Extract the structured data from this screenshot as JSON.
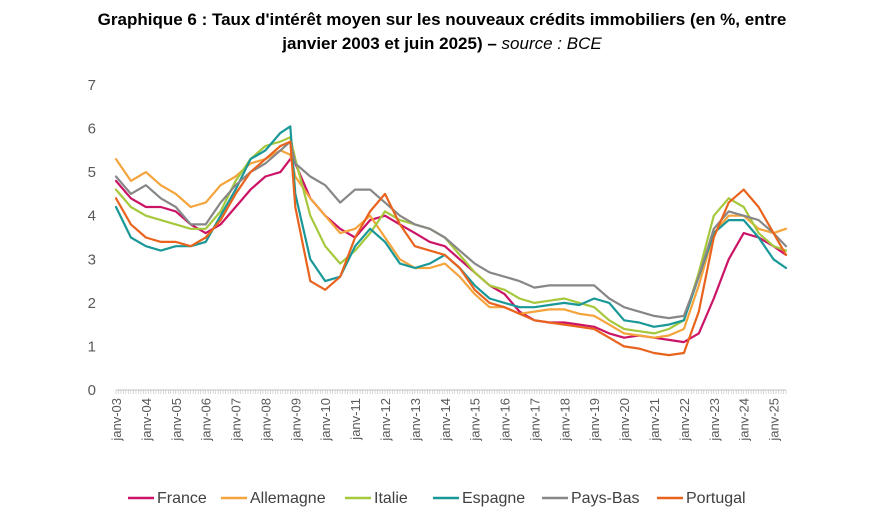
{
  "title": {
    "line1": "Graphique 6 : Taux d'intérêt moyen sur les nouveaux crédits immobiliers (en %, entre",
    "line2_main": "janvier 2003 et juin 2025) – ",
    "line2_source": "source : BCE"
  },
  "chart_data": {
    "type": "line",
    "title": "Graphique 6 : Taux d'intérêt moyen sur les nouveaux crédits immobiliers (en %, entre janvier 2003 et juin 2025) – source : BCE",
    "xlabel": "",
    "ylabel": "",
    "x_range": [
      "2003-01",
      "2025-06"
    ],
    "ylim": [
      0,
      7
    ],
    "y_ticks": [
      "0",
      "1",
      "2",
      "3",
      "4",
      "5",
      "6",
      "7"
    ],
    "x_ticks": [
      "janv-03",
      "janv-04",
      "janv-05",
      "janv-06",
      "janv-07",
      "janv-08",
      "janv-09",
      "janv-10",
      "janv-11",
      "janv-12",
      "janv-13",
      "janv-14",
      "janv-15",
      "janv-16",
      "janv-17",
      "janv-18",
      "janv-19",
      "janv-20",
      "janv-21",
      "janv-22",
      "janv-23",
      "janv-24",
      "janv-25"
    ],
    "grid": false,
    "legend_position": "bottom",
    "series": [
      {
        "name": "France",
        "color": "#cc1466",
        "x": [
          "2003-01",
          "2003-07",
          "2004-01",
          "2004-07",
          "2005-01",
          "2005-07",
          "2006-01",
          "2006-07",
          "2007-01",
          "2007-07",
          "2008-01",
          "2008-07",
          "2008-11",
          "2009-01",
          "2009-07",
          "2010-01",
          "2010-07",
          "2011-01",
          "2011-07",
          "2012-01",
          "2012-07",
          "2013-01",
          "2013-07",
          "2014-01",
          "2014-07",
          "2015-01",
          "2015-07",
          "2016-01",
          "2016-07",
          "2017-01",
          "2017-07",
          "2018-01",
          "2018-07",
          "2019-01",
          "2019-07",
          "2020-01",
          "2020-07",
          "2021-01",
          "2021-07",
          "2022-01",
          "2022-07",
          "2023-01",
          "2023-07",
          "2024-01",
          "2024-07",
          "2025-01",
          "2025-06"
        ],
        "values": [
          4.8,
          4.4,
          4.2,
          4.2,
          4.1,
          3.8,
          3.6,
          3.8,
          4.2,
          4.6,
          4.9,
          5.0,
          5.3,
          5.2,
          4.4,
          4.0,
          3.7,
          3.5,
          3.9,
          4.0,
          3.8,
          3.6,
          3.4,
          3.3,
          3.0,
          2.7,
          2.4,
          2.2,
          1.8,
          1.6,
          1.55,
          1.55,
          1.5,
          1.45,
          1.3,
          1.2,
          1.25,
          1.2,
          1.15,
          1.1,
          1.3,
          2.1,
          3.0,
          3.6,
          3.5,
          3.3,
          3.1
        ]
      },
      {
        "name": "Allemagne",
        "color": "#f5a43c",
        "x": [
          "2003-01",
          "2003-07",
          "2004-01",
          "2004-07",
          "2005-01",
          "2005-07",
          "2006-01",
          "2006-07",
          "2007-01",
          "2007-07",
          "2008-01",
          "2008-07",
          "2008-11",
          "2009-01",
          "2009-07",
          "2010-01",
          "2010-07",
          "2011-01",
          "2011-07",
          "2012-01",
          "2012-07",
          "2013-01",
          "2013-07",
          "2014-01",
          "2014-07",
          "2015-01",
          "2015-07",
          "2016-01",
          "2016-07",
          "2017-01",
          "2017-07",
          "2018-01",
          "2018-07",
          "2019-01",
          "2019-07",
          "2020-01",
          "2020-07",
          "2021-01",
          "2021-07",
          "2022-01",
          "2022-07",
          "2023-01",
          "2023-07",
          "2024-01",
          "2024-07",
          "2025-01",
          "2025-06"
        ],
        "values": [
          5.3,
          4.8,
          5.0,
          4.7,
          4.5,
          4.2,
          4.3,
          4.7,
          4.9,
          5.2,
          5.3,
          5.5,
          5.4,
          4.9,
          4.4,
          4.0,
          3.6,
          3.7,
          4.0,
          3.5,
          3.0,
          2.8,
          2.8,
          2.9,
          2.6,
          2.2,
          1.9,
          1.9,
          1.75,
          1.8,
          1.85,
          1.85,
          1.75,
          1.7,
          1.5,
          1.3,
          1.25,
          1.2,
          1.25,
          1.4,
          2.4,
          3.6,
          4.0,
          4.0,
          3.7,
          3.6,
          3.7
        ]
      },
      {
        "name": "Italie",
        "color": "#a6c83c",
        "x": [
          "2003-01",
          "2003-07",
          "2004-01",
          "2004-07",
          "2005-01",
          "2005-07",
          "2006-01",
          "2006-07",
          "2007-01",
          "2007-07",
          "2008-01",
          "2008-07",
          "2008-11",
          "2009-01",
          "2009-07",
          "2010-01",
          "2010-07",
          "2011-01",
          "2011-07",
          "2012-01",
          "2012-07",
          "2013-01",
          "2013-07",
          "2014-01",
          "2014-07",
          "2015-01",
          "2015-07",
          "2016-01",
          "2016-07",
          "2017-01",
          "2017-07",
          "2018-01",
          "2018-07",
          "2019-01",
          "2019-07",
          "2020-01",
          "2020-07",
          "2021-01",
          "2021-07",
          "2022-01",
          "2022-07",
          "2023-01",
          "2023-07",
          "2024-01",
          "2024-07",
          "2025-01",
          "2025-06"
        ],
        "values": [
          4.6,
          4.2,
          4.0,
          3.9,
          3.8,
          3.7,
          3.7,
          4.1,
          4.8,
          5.3,
          5.6,
          5.7,
          5.8,
          5.3,
          4.0,
          3.3,
          2.9,
          3.2,
          3.6,
          4.1,
          3.9,
          3.8,
          3.7,
          3.5,
          3.1,
          2.7,
          2.4,
          2.3,
          2.1,
          2.0,
          2.05,
          2.1,
          2.0,
          1.9,
          1.6,
          1.4,
          1.35,
          1.3,
          1.4,
          1.6,
          2.7,
          4.0,
          4.4,
          4.2,
          3.6,
          3.3,
          3.2
        ]
      },
      {
        "name": "Espagne",
        "color": "#1a9898",
        "x": [
          "2003-01",
          "2003-07",
          "2004-01",
          "2004-07",
          "2005-01",
          "2005-07",
          "2006-01",
          "2006-07",
          "2007-01",
          "2007-07",
          "2008-01",
          "2008-07",
          "2008-11",
          "2009-01",
          "2009-07",
          "2010-01",
          "2010-07",
          "2011-01",
          "2011-07",
          "2012-01",
          "2012-07",
          "2013-01",
          "2013-07",
          "2014-01",
          "2014-07",
          "2015-01",
          "2015-07",
          "2016-01",
          "2016-07",
          "2017-01",
          "2017-07",
          "2018-01",
          "2018-07",
          "2019-01",
          "2019-07",
          "2020-01",
          "2020-07",
          "2021-01",
          "2021-07",
          "2022-01",
          "2022-07",
          "2023-01",
          "2023-07",
          "2024-01",
          "2024-07",
          "2025-01",
          "2025-06"
        ],
        "values": [
          4.2,
          3.5,
          3.3,
          3.2,
          3.3,
          3.3,
          3.4,
          4.0,
          4.6,
          5.3,
          5.5,
          5.9,
          6.05,
          4.5,
          3.0,
          2.5,
          2.6,
          3.3,
          3.7,
          3.4,
          2.9,
          2.8,
          2.9,
          3.1,
          2.8,
          2.4,
          2.1,
          2.0,
          1.9,
          1.9,
          1.95,
          2.0,
          1.95,
          2.1,
          2.0,
          1.6,
          1.55,
          1.45,
          1.5,
          1.6,
          2.6,
          3.6,
          3.9,
          3.9,
          3.5,
          3.0,
          2.8
        ]
      },
      {
        "name": "Pays-Bas",
        "color": "#878787",
        "x": [
          "2003-01",
          "2003-07",
          "2004-01",
          "2004-07",
          "2005-01",
          "2005-07",
          "2006-01",
          "2006-07",
          "2007-01",
          "2007-07",
          "2008-01",
          "2008-07",
          "2008-11",
          "2009-01",
          "2009-07",
          "2010-01",
          "2010-07",
          "2011-01",
          "2011-07",
          "2012-01",
          "2012-07",
          "2013-01",
          "2013-07",
          "2014-01",
          "2014-07",
          "2015-01",
          "2015-07",
          "2016-01",
          "2016-07",
          "2017-01",
          "2017-07",
          "2018-01",
          "2018-07",
          "2019-01",
          "2019-07",
          "2020-01",
          "2020-07",
          "2021-01",
          "2021-07",
          "2022-01",
          "2022-07",
          "2023-01",
          "2023-07",
          "2024-01",
          "2024-07",
          "2025-01",
          "2025-06"
        ],
        "values": [
          4.9,
          4.5,
          4.7,
          4.4,
          4.2,
          3.8,
          3.8,
          4.3,
          4.7,
          5.0,
          5.2,
          5.5,
          5.7,
          5.2,
          4.9,
          4.7,
          4.3,
          4.6,
          4.6,
          4.3,
          4.0,
          3.8,
          3.7,
          3.5,
          3.2,
          2.9,
          2.7,
          2.6,
          2.5,
          2.35,
          2.4,
          2.4,
          2.4,
          2.4,
          2.1,
          1.9,
          1.8,
          1.7,
          1.65,
          1.7,
          2.6,
          3.7,
          4.1,
          4.0,
          3.9,
          3.6,
          3.3
        ]
      },
      {
        "name": "Portugal",
        "color": "#e8641e",
        "x": [
          "2003-01",
          "2003-07",
          "2004-01",
          "2004-07",
          "2005-01",
          "2005-07",
          "2006-01",
          "2006-07",
          "2007-01",
          "2007-07",
          "2008-01",
          "2008-07",
          "2008-11",
          "2009-01",
          "2009-07",
          "2010-01",
          "2010-07",
          "2011-01",
          "2011-07",
          "2012-01",
          "2012-07",
          "2013-01",
          "2013-07",
          "2014-01",
          "2014-07",
          "2015-01",
          "2015-07",
          "2016-01",
          "2016-07",
          "2017-01",
          "2017-07",
          "2018-01",
          "2018-07",
          "2019-01",
          "2019-07",
          "2020-01",
          "2020-07",
          "2021-01",
          "2021-07",
          "2022-01",
          "2022-07",
          "2023-01",
          "2023-07",
          "2024-01",
          "2024-07",
          "2025-01",
          "2025-06"
        ],
        "values": [
          4.4,
          3.8,
          3.5,
          3.4,
          3.4,
          3.3,
          3.5,
          3.9,
          4.5,
          5.0,
          5.3,
          5.6,
          5.7,
          4.2,
          2.5,
          2.3,
          2.6,
          3.5,
          4.1,
          4.5,
          3.8,
          3.3,
          3.2,
          3.1,
          2.8,
          2.3,
          2.0,
          1.9,
          1.75,
          1.6,
          1.55,
          1.5,
          1.45,
          1.4,
          1.2,
          1.0,
          0.95,
          0.85,
          0.8,
          0.85,
          1.8,
          3.5,
          4.3,
          4.6,
          4.2,
          3.6,
          3.1
        ]
      }
    ]
  }
}
